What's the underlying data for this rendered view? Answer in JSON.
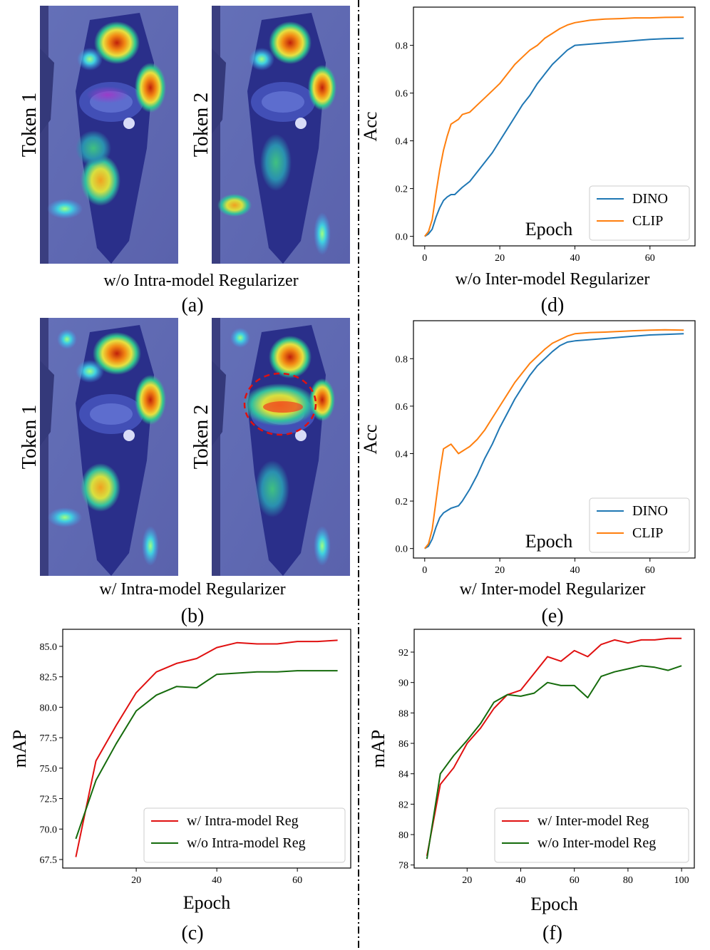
{
  "colors": {
    "dino": "#1f77b4",
    "clip": "#ff7f0e",
    "w_reg": "#e01010",
    "wo_reg": "#156b0c",
    "annotation": "#e01010",
    "heatmap_base": "#5a64b4"
  },
  "panels": {
    "a": {
      "tokens": [
        "Token 1",
        "Token 2"
      ],
      "caption": "w/o Intra-model Regularizer",
      "label": "(a)"
    },
    "b": {
      "tokens": [
        "Token 1",
        "Token 2"
      ],
      "caption": "w/ Intra-model Regularizer",
      "label": "(b)"
    },
    "c": {
      "caption": "",
      "label": "(c)"
    },
    "d": {
      "caption": "w/o Inter-model Regularizer",
      "label": "(d)"
    },
    "e": {
      "caption": "w/ Inter-model Regularizer",
      "label": "(e)"
    },
    "f": {
      "caption": "",
      "label": "(f)"
    }
  },
  "chart_data": [
    {
      "id": "d",
      "type": "line",
      "title": "",
      "xlabel": "Epoch",
      "ylabel": "Acc",
      "xlim": [
        -3,
        72
      ],
      "ylim": [
        -0.04,
        0.96
      ],
      "xticks": [
        0,
        20,
        40,
        60
      ],
      "yticks": [
        0.0,
        0.2,
        0.4,
        0.6,
        0.8
      ],
      "tick_format": "fixed1",
      "legend": "bottom-right",
      "series": [
        {
          "name": "DINO",
          "color_key": "dino",
          "x": [
            0,
            1,
            2,
            3,
            4,
            5,
            6,
            7,
            8,
            9,
            10,
            12,
            14,
            16,
            18,
            20,
            22,
            24,
            26,
            28,
            30,
            32,
            34,
            36,
            38,
            40,
            44,
            48,
            52,
            56,
            60,
            64,
            69
          ],
          "y": [
            0.0,
            0.01,
            0.03,
            0.08,
            0.12,
            0.15,
            0.165,
            0.175,
            0.175,
            0.19,
            0.205,
            0.23,
            0.27,
            0.31,
            0.35,
            0.4,
            0.45,
            0.5,
            0.55,
            0.59,
            0.64,
            0.68,
            0.72,
            0.75,
            0.78,
            0.8,
            0.805,
            0.81,
            0.815,
            0.82,
            0.825,
            0.828,
            0.83
          ]
        },
        {
          "name": "CLIP",
          "color_key": "clip",
          "x": [
            0,
            1,
            2,
            3,
            4,
            5,
            6,
            7,
            8,
            9,
            10,
            11,
            12,
            14,
            16,
            18,
            20,
            22,
            24,
            26,
            28,
            30,
            32,
            34,
            36,
            38,
            40,
            44,
            48,
            52,
            56,
            60,
            64,
            69
          ],
          "y": [
            0.0,
            0.02,
            0.07,
            0.18,
            0.28,
            0.36,
            0.42,
            0.47,
            0.48,
            0.49,
            0.51,
            0.515,
            0.52,
            0.55,
            0.58,
            0.61,
            0.64,
            0.68,
            0.72,
            0.75,
            0.78,
            0.8,
            0.83,
            0.85,
            0.87,
            0.885,
            0.895,
            0.905,
            0.91,
            0.912,
            0.915,
            0.915,
            0.917,
            0.918
          ]
        }
      ]
    },
    {
      "id": "e",
      "type": "line",
      "title": "",
      "xlabel": "Epoch",
      "ylabel": "Acc",
      "xlim": [
        -3,
        72
      ],
      "ylim": [
        -0.04,
        0.96
      ],
      "xticks": [
        0,
        20,
        40,
        60
      ],
      "yticks": [
        0.0,
        0.2,
        0.4,
        0.6,
        0.8
      ],
      "tick_format": "fixed1",
      "legend": "bottom-right",
      "series": [
        {
          "name": "DINO",
          "color_key": "dino",
          "x": [
            0,
            1,
            2,
            3,
            4,
            5,
            6,
            7,
            8,
            9,
            10,
            12,
            14,
            16,
            18,
            20,
            22,
            24,
            26,
            28,
            30,
            32,
            34,
            36,
            38,
            40,
            44,
            48,
            52,
            56,
            60,
            64,
            69
          ],
          "y": [
            0.0,
            0.01,
            0.04,
            0.09,
            0.13,
            0.15,
            0.16,
            0.17,
            0.175,
            0.18,
            0.2,
            0.25,
            0.31,
            0.38,
            0.44,
            0.51,
            0.57,
            0.63,
            0.68,
            0.73,
            0.77,
            0.8,
            0.83,
            0.855,
            0.87,
            0.875,
            0.88,
            0.885,
            0.89,
            0.895,
            0.9,
            0.902,
            0.905
          ]
        },
        {
          "name": "CLIP",
          "color_key": "clip",
          "x": [
            0,
            1,
            2,
            3,
            4,
            5,
            6,
            7,
            8,
            9,
            10,
            11,
            12,
            14,
            16,
            18,
            20,
            22,
            24,
            26,
            28,
            30,
            32,
            34,
            36,
            38,
            40,
            44,
            48,
            52,
            56,
            60,
            64,
            69
          ],
          "y": [
            0.0,
            0.02,
            0.08,
            0.2,
            0.32,
            0.42,
            0.43,
            0.44,
            0.42,
            0.4,
            0.41,
            0.42,
            0.43,
            0.46,
            0.5,
            0.55,
            0.6,
            0.65,
            0.7,
            0.74,
            0.78,
            0.81,
            0.84,
            0.865,
            0.88,
            0.895,
            0.905,
            0.91,
            0.912,
            0.915,
            0.918,
            0.92,
            0.922,
            0.92
          ]
        }
      ]
    },
    {
      "id": "c",
      "type": "line",
      "title": "",
      "xlabel": "Epoch",
      "ylabel": "mAP",
      "xlim": [
        1.75,
        73.25
      ],
      "ylim": [
        66.8,
        86.4
      ],
      "xticks": [
        20,
        40,
        60
      ],
      "yticks": [
        67.5,
        70.0,
        72.5,
        75.0,
        77.5,
        80.0,
        82.5,
        85.0
      ],
      "tick_format": "fixed1",
      "legend": "bottom-right",
      "series": [
        {
          "name": "w/ Intra-model Reg",
          "color_key": "w_reg",
          "x": [
            5,
            10,
            15,
            20,
            25,
            30,
            35,
            40,
            45,
            50,
            55,
            60,
            65,
            70
          ],
          "y": [
            67.7,
            75.6,
            78.5,
            81.2,
            82.9,
            83.6,
            84.0,
            84.9,
            85.3,
            85.2,
            85.2,
            85.4,
            85.4,
            85.5
          ]
        },
        {
          "name": "w/o Intra-model Reg",
          "color_key": "wo_reg",
          "x": [
            5,
            10,
            15,
            20,
            25,
            30,
            35,
            40,
            45,
            50,
            55,
            60,
            65,
            70
          ],
          "y": [
            69.2,
            74.0,
            77.0,
            79.7,
            81.0,
            81.7,
            81.6,
            82.7,
            82.8,
            82.9,
            82.9,
            83.0,
            83.0,
            83.0
          ]
        }
      ]
    },
    {
      "id": "f",
      "type": "line",
      "title": "",
      "xlabel": "Epoch",
      "ylabel": "mAP",
      "xlim": [
        0.25,
        104.75
      ],
      "ylim": [
        77.8,
        93.5
      ],
      "xticks": [
        20,
        40,
        60,
        80,
        100
      ],
      "yticks": [
        78,
        80,
        82,
        84,
        86,
        88,
        90,
        92
      ],
      "tick_format": "int",
      "legend": "bottom-right",
      "series": [
        {
          "name": "w/ Inter-model Reg",
          "color_key": "w_reg",
          "x": [
            5,
            10,
            15,
            20,
            25,
            30,
            35,
            40,
            45,
            50,
            55,
            60,
            65,
            70,
            75,
            80,
            85,
            90,
            95,
            100
          ],
          "y": [
            78.6,
            83.3,
            84.4,
            86.0,
            87.0,
            88.3,
            89.2,
            89.5,
            90.6,
            91.7,
            91.4,
            92.1,
            91.7,
            92.5,
            92.8,
            92.6,
            92.8,
            92.8,
            92.9,
            92.9
          ]
        },
        {
          "name": "w/o Inter-model Reg",
          "color_key": "wo_reg",
          "x": [
            5,
            10,
            15,
            20,
            25,
            30,
            35,
            40,
            45,
            50,
            55,
            60,
            65,
            70,
            75,
            80,
            85,
            90,
            95,
            100
          ],
          "y": [
            78.4,
            84.0,
            85.2,
            86.2,
            87.3,
            88.7,
            89.2,
            89.1,
            89.3,
            90.0,
            89.8,
            89.8,
            89.0,
            90.4,
            90.7,
            90.9,
            91.1,
            91.0,
            90.8,
            91.1
          ]
        }
      ]
    }
  ]
}
